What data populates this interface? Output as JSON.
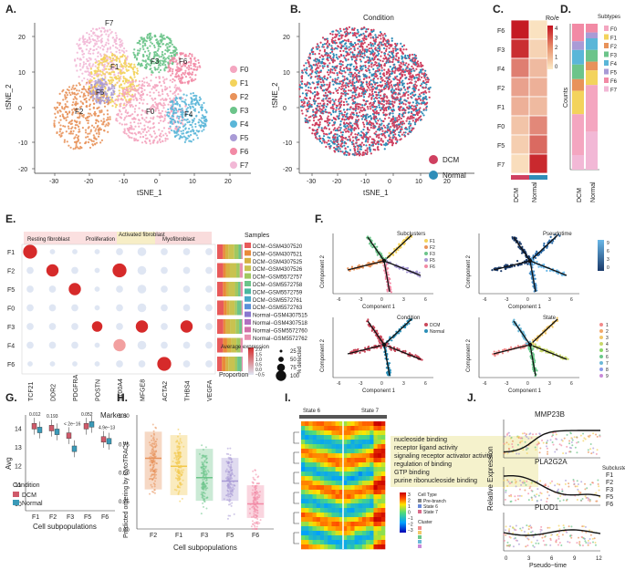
{
  "panel_letters": [
    "A.",
    "B.",
    "C.",
    "D.",
    "E.",
    "F.",
    "G.",
    "H.",
    "I.",
    "J."
  ],
  "colors": {
    "F0": "#f4a6c0",
    "F1": "#f3d35c",
    "F2": "#e8925a",
    "F3": "#6cc48a",
    "F4": "#5ab6d8",
    "F5": "#a99bd6",
    "F6": "#f28aa5",
    "F7": "#f2b8d6",
    "dcm": "#c9475a",
    "normal": "#2a8fb8",
    "tsne_dcm": "#cf4060",
    "tsne_normal": "#2f8db8"
  },
  "panelA": {
    "xlabel": "tSNE_1",
    "ylabel": "tSNE_2",
    "xticks": [
      "-30",
      "-20",
      "-10",
      "0",
      "10",
      "20"
    ],
    "yticks": [
      "20",
      "10",
      "0",
      "-10",
      "-20"
    ],
    "cluster_labels": [
      "F7",
      "F1",
      "F3",
      "F6",
      "F5",
      "F2",
      "F0",
      "F4"
    ],
    "legend": [
      "F0",
      "F1",
      "F2",
      "F3",
      "F4",
      "F5",
      "F6",
      "F7"
    ]
  },
  "panelB": {
    "title": "Condition",
    "xlabel": "tSNE_1",
    "ylabel": "tSNE_2",
    "xticks": [
      "-30",
      "-20",
      "-10",
      "0",
      "10",
      "20"
    ],
    "yticks": [
      "20",
      "10",
      "0",
      "-10",
      "-20"
    ],
    "legend": [
      "DCM",
      "Normal"
    ]
  },
  "panelC": {
    "title": "Ro/e",
    "rows": [
      "F6",
      "F3",
      "F4",
      "F2",
      "F1",
      "F0",
      "F5",
      "F7"
    ],
    "cols": [
      "DCM",
      "Normal"
    ],
    "scale": [
      "4",
      "3",
      "2",
      "1",
      "0"
    ]
  },
  "panelD": {
    "title": "Subtypes",
    "ylabel": "Counts",
    "cols": [
      "DCM",
      "Normal"
    ],
    "legend": [
      "F0",
      "F1",
      "F2",
      "F3",
      "F4",
      "F5",
      "F6",
      "F7"
    ]
  },
  "panelE": {
    "headers": [
      "Resting fibroblast",
      "Proliferation",
      "Activated fibroblast",
      "Myofibroblast"
    ],
    "rows": [
      "F1",
      "F2",
      "F5",
      "F0",
      "F3",
      "F4",
      "F6"
    ],
    "markers": [
      "TCF21",
      "DDR2",
      "PDGFRA",
      "POSTN",
      "S100A4",
      "MFGE8",
      "ACTA2",
      "THBS4",
      "VEGFA"
    ],
    "xlabel": "Markers",
    "samples_title": "Samples",
    "samples": [
      "DCM−GSM4307520",
      "DCM−GSM4307521",
      "DCM−GSM4307525",
      "DCM−GSM4307526",
      "DCM−GSM5572757",
      "DCM−GSM5572758",
      "DCM−GSM5572759",
      "DCM−GSM5572761",
      "DCM−GSM5572763",
      "Normal−GSM4307515",
      "Normal−GSM4307518",
      "Normal−GSM5572760",
      "Normal−GSM5572762"
    ],
    "proportion_label": "Proportion",
    "avg_expr_title": "Average expression",
    "avg_expr_ticks": [
      "2.0",
      "1.5",
      "1.0",
      "0.5",
      "0.0",
      "−0.5"
    ],
    "pct_title": "% detected",
    "pct_values": [
      "25",
      "50",
      "75",
      "100"
    ]
  },
  "panelF": {
    "xlabel": "Component 1",
    "ylabel": "Component 2",
    "xticks": [
      "-6",
      "-3",
      "0",
      "3",
      "6"
    ],
    "subclusters_title": "Subclusters",
    "subclusters": [
      "F1",
      "F2",
      "F3",
      "F5",
      "F6"
    ],
    "pseudotime_title": "Pseudotime",
    "pseudotime_ticks": [
      "9",
      "6",
      "3",
      "0"
    ],
    "condition_title": "Condition",
    "condition": [
      "DCM",
      "Normal"
    ],
    "state_title": "State",
    "states": [
      "1",
      "2",
      "3",
      "4",
      "5",
      "6",
      "7",
      "8",
      "9"
    ]
  },
  "panelG": {
    "ylabel": "Avg",
    "xlabel": "Cell subpopulations",
    "categories": [
      "F1",
      "F2",
      "F3",
      "F5",
      "F6"
    ],
    "pvalues": [
      "0.012",
      "0.193",
      "< 2e−16",
      "0.052",
      "4.9e−13"
    ],
    "yticks": [
      "14",
      "13",
      "12",
      "11",
      "10"
    ],
    "legend_title": "Condition",
    "legend": [
      "DCM",
      "Normal"
    ]
  },
  "panelH": {
    "ylabel": "Predicted ordering by CytoTRACE",
    "xlabel": "Cell subpopulations",
    "categories": [
      "F2",
      "F1",
      "F3",
      "F5",
      "F6"
    ],
    "yticks": [
      "1.00",
      "0.75",
      "0.50",
      "0.25",
      "0.00"
    ]
  },
  "panelI": {
    "state_left": "State 6",
    "state_right": "State 7",
    "go_terms": [
      "nucleoside binding",
      "receptor ligand activity",
      "signaling receptor activator activity",
      "regulation of binding",
      "GTP binding",
      "purine ribonucleoside binding"
    ],
    "legend_cell_type": "Cell Type",
    "legend_items": [
      "Pre-branch",
      "State 6",
      "State 7"
    ],
    "legend_cluster": "Cluster",
    "scale_ticks": [
      "3",
      "2",
      "1",
      "0",
      "−1",
      "−2",
      "−3"
    ]
  },
  "panelJ": {
    "genes": [
      "MMP23B",
      "PLA2G2A",
      "PLOD1"
    ],
    "ylabel": "Relative Expression",
    "xlabel": "Pseudo−time",
    "xticks": [
      "0",
      "3",
      "6",
      "9",
      "12"
    ],
    "subclusters_title": "Subclusters",
    "subclusters": [
      "F1",
      "F2",
      "F3",
      "F5",
      "F6"
    ]
  }
}
